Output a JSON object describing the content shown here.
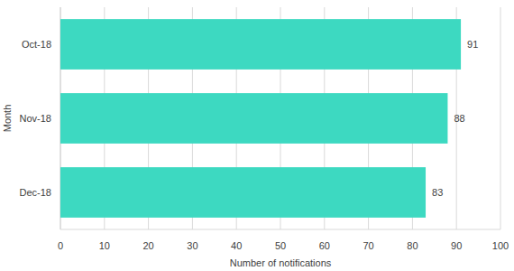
{
  "chart_data": {
    "type": "bar",
    "orientation": "horizontal",
    "categories": [
      "Oct-18",
      "Nov-18",
      "Dec-18"
    ],
    "values": [
      91,
      88,
      83
    ],
    "color": "#3dd9c1",
    "x_label": "Number of notifications",
    "y_label": "Month",
    "xlim": [
      0,
      100
    ],
    "xticks": [
      0,
      10,
      20,
      30,
      40,
      50,
      60,
      70,
      80,
      90,
      100
    ],
    "grid": true,
    "data_labels": true
  }
}
